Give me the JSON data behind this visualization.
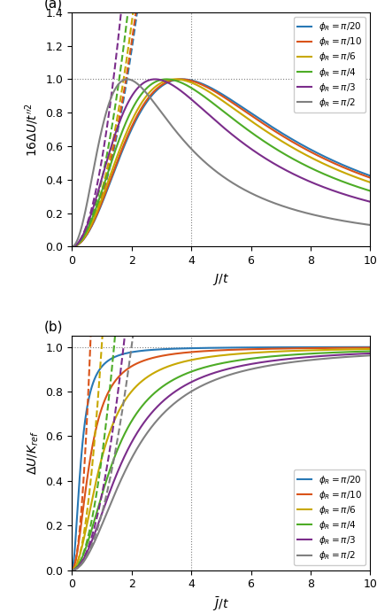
{
  "phi_values": [
    0.15707963267948966,
    0.3141592653589793,
    0.5235987755982988,
    0.7853981633974483,
    1.0471975511965976,
    1.5707963267948966
  ],
  "phi_labels": [
    "$\\phi_R = \\pi/20$",
    "$\\phi_R = \\pi/10$",
    "$\\phi_R = \\pi/6$",
    "$\\phi_R = \\pi/4$",
    "$\\phi_R = \\pi/3$",
    "$\\phi_R = \\pi/2$"
  ],
  "colors": [
    "#2878b5",
    "#d95319",
    "#c8a800",
    "#4dac26",
    "#7b2d8b",
    "#808080"
  ],
  "J_ref": 4.0,
  "panel_a_ylim": [
    0,
    1.4
  ],
  "panel_a_yticks": [
    0.0,
    0.2,
    0.4,
    0.6,
    0.8,
    1.0,
    1.2,
    1.4
  ],
  "panel_b_ylim": [
    0,
    1.05
  ],
  "panel_b_yticks": [
    0.0,
    0.2,
    0.4,
    0.6,
    0.8,
    1.0
  ],
  "xticks": [
    0,
    2,
    4,
    6,
    8,
    10
  ],
  "figsize": [
    4.27,
    6.92
  ],
  "dpi": 100
}
